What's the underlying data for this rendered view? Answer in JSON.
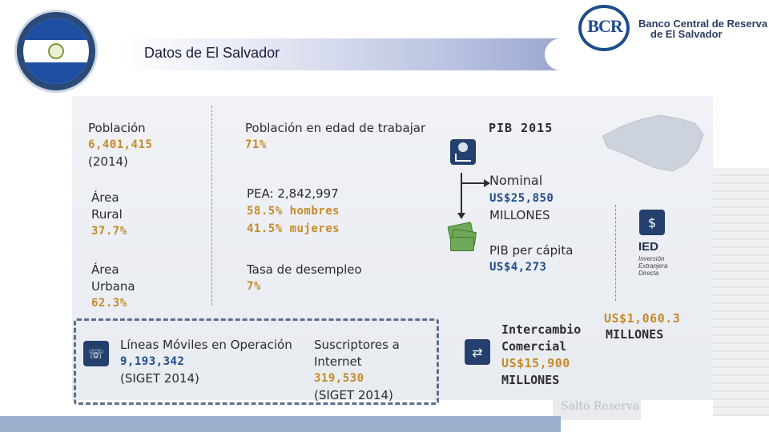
{
  "header": {
    "title": "Datos de El Salvador",
    "bank_name_line1": "Banco Central de Reserva",
    "bank_name_line2": "de El Salvador",
    "logo_text": "BCR"
  },
  "poblacion": {
    "label": "Población",
    "value": "6,401,415",
    "year": "(2014)"
  },
  "area_rural": {
    "label_line1": "Área",
    "label_line2": "Rural",
    "value": "37.7%"
  },
  "area_urbana": {
    "label_line1": "Área",
    "label_line2": "Urbana",
    "value": "62.3%"
  },
  "edad_trabajar": {
    "label": "Población en edad de trabajar",
    "value": "71%"
  },
  "pea": {
    "label": "PEA: 2,842,997",
    "hombres": "58.5% hombres",
    "mujeres": "41.5% mujeres"
  },
  "desempleo": {
    "label": "Tasa de desempleo",
    "value": "7%"
  },
  "lineas_moviles": {
    "label": "Líneas Móviles en Operación",
    "value": "9,193,342",
    "source": "(SIGET 2014)"
  },
  "internet": {
    "label_line1": "Suscriptores a",
    "label_line2": "Internet",
    "value": "319,530",
    "source": "(SIGET 2014)"
  },
  "pib": {
    "title": "PIB 2015",
    "nominal_label": "Nominal",
    "nominal_value": "US$25,850",
    "nominal_unit": "MILLONES",
    "percapita_label": "PIB per cápita",
    "percapita_value": "US$4,273"
  },
  "ied": {
    "badge": "IED",
    "desc_line1": "Inversión",
    "desc_line2": "Extranjera",
    "desc_line3": "Directa",
    "value": "US$1,060.3",
    "unit": "MILLONES"
  },
  "intercambio": {
    "label_line1": "Intercambio",
    "label_line2": "Comercial",
    "value": "US$15,900",
    "unit": "MILLONES"
  },
  "background": {
    "sign_text": "Salto Reserva"
  },
  "colors": {
    "accent_gold": "#c58a28",
    "accent_blue": "#1f4c8c"
  }
}
